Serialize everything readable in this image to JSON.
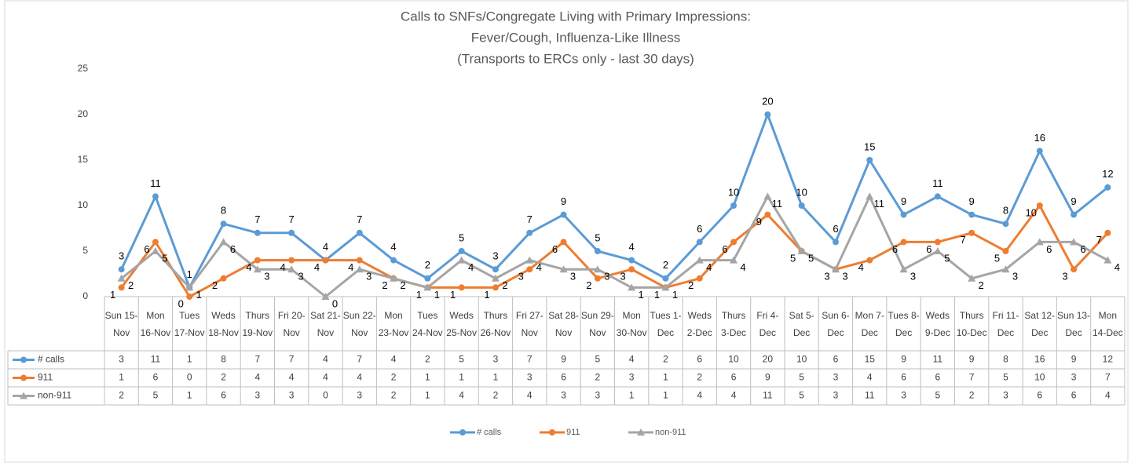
{
  "chart_data": {
    "type": "line",
    "title": [
      "Calls to SNFs/Congregate Living with Primary Impressions:",
      "Fever/Cough, Influenza-Like Illness",
      "(Transports to ERCs only - last 30 days)"
    ],
    "categories": [
      "Sun 15-Nov",
      "Mon 16-Nov",
      "Tues 17-Nov",
      "Weds 18-Nov",
      "Thurs 19-Nov",
      "Fri 20-Nov",
      "Sat 21-Nov",
      "Sun 22-Nov",
      "Mon 23-Nov",
      "Tues 24-Nov",
      "Weds 25-Nov",
      "Thurs 26-Nov",
      "Fri 27-Nov",
      "Sat 28-Nov",
      "Sun 29-Nov",
      "Mon 30-Nov",
      "Tues 1-Dec",
      "Weds 2-Dec",
      "Thurs 3-Dec",
      "Fri 4-Dec",
      "Sat 5-Dec",
      "Sun 6-Dec",
      "Mon 7-Dec",
      "Tues 8-Dec",
      "Weds 9-Dec",
      "Thurs 10-Dec",
      "Fri 11-Dec",
      "Sat 12-Dec",
      "Sun 13-Dec",
      "Mon 14-Dec"
    ],
    "series": [
      {
        "name": "# calls",
        "color": "#5b9bd5",
        "marker": "circle",
        "values": [
          3,
          11,
          1,
          8,
          7,
          7,
          4,
          7,
          4,
          2,
          5,
          3,
          7,
          9,
          5,
          4,
          2,
          6,
          10,
          20,
          10,
          6,
          15,
          9,
          11,
          9,
          8,
          16,
          9,
          12
        ]
      },
      {
        "name": "911",
        "color": "#ed7d31",
        "marker": "circle",
        "values": [
          1,
          6,
          0,
          2,
          4,
          4,
          4,
          4,
          2,
          1,
          1,
          1,
          3,
          6,
          2,
          3,
          1,
          2,
          6,
          9,
          5,
          3,
          4,
          6,
          6,
          7,
          5,
          10,
          3,
          7
        ]
      },
      {
        "name": "non-911",
        "color": "#a5a5a5",
        "marker": "triangle",
        "values": [
          2,
          5,
          1,
          6,
          3,
          3,
          0,
          3,
          2,
          1,
          4,
          2,
          4,
          3,
          3,
          1,
          1,
          4,
          4,
          11,
          5,
          3,
          11,
          3,
          5,
          2,
          3,
          6,
          6,
          4
        ]
      }
    ],
    "ylim": [
      0,
      25
    ],
    "yticks": [
      0,
      5,
      10,
      15,
      20,
      25
    ],
    "grid": false,
    "data_table": true,
    "legend": "bottom"
  }
}
